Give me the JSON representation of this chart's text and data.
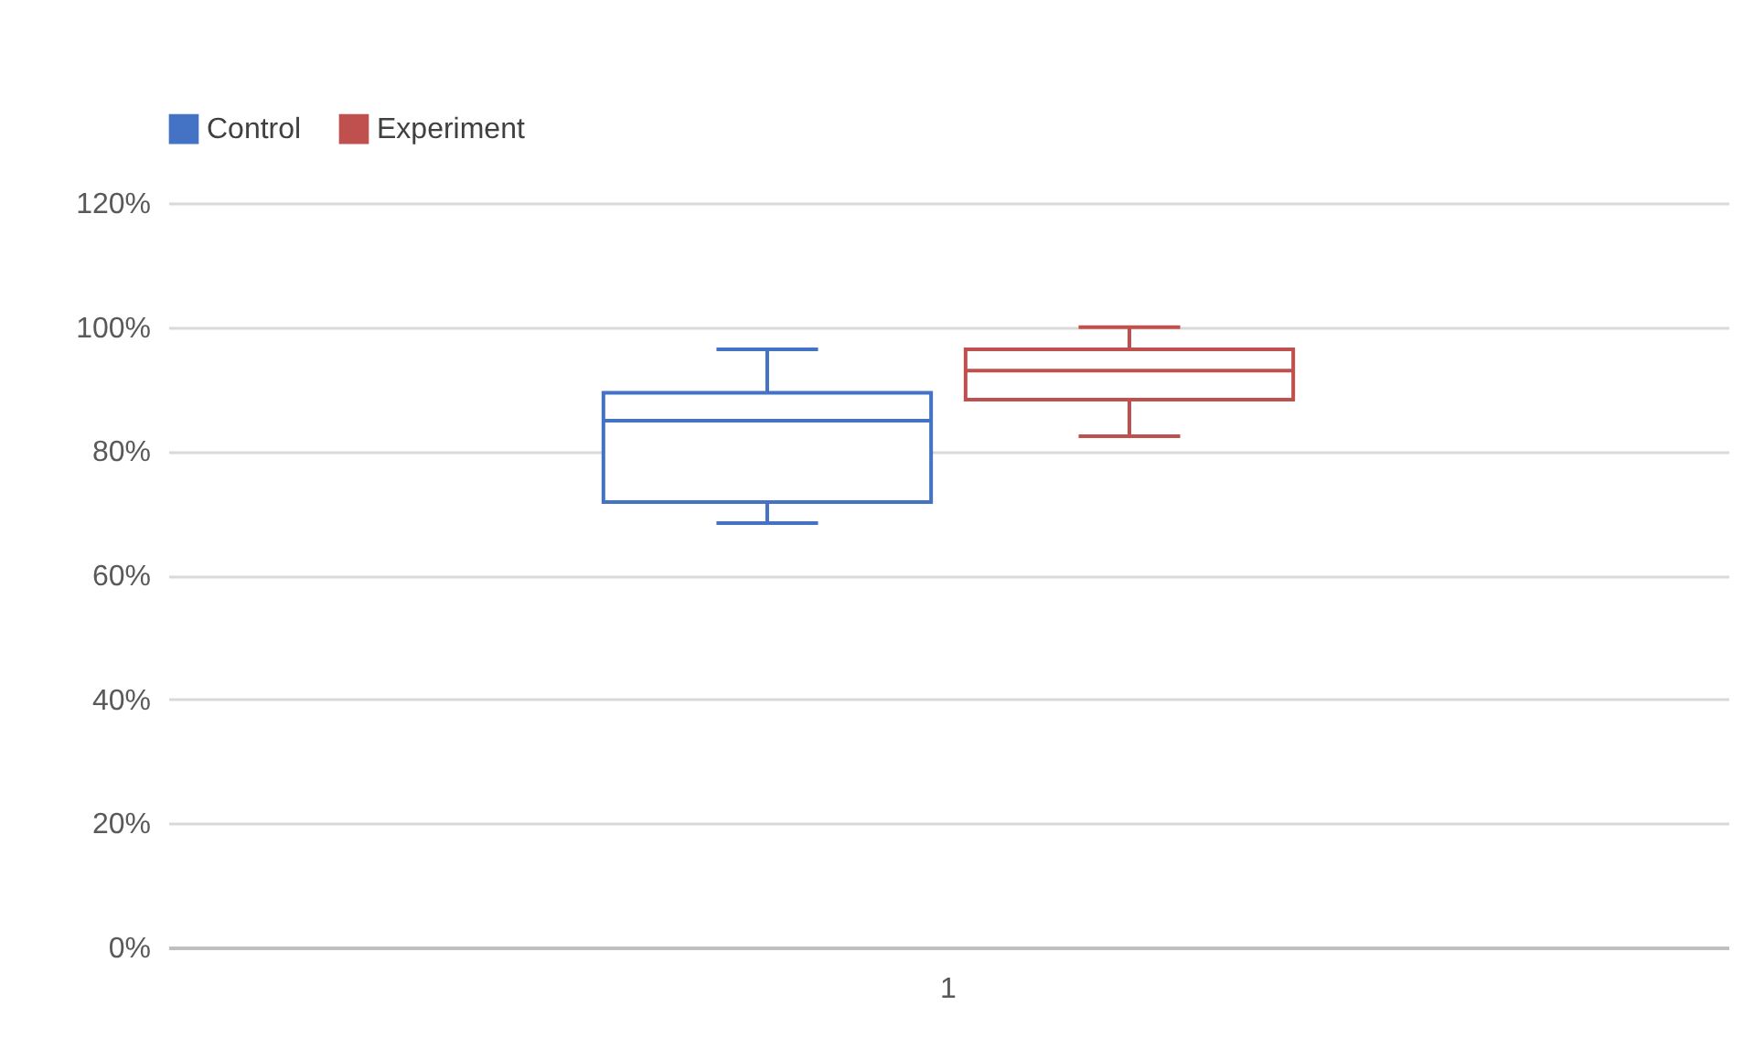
{
  "chart_data": {
    "type": "box",
    "categories": [
      "1"
    ],
    "series": [
      {
        "name": "Control",
        "color": "#4472c4",
        "boxes": [
          {
            "low": 0.684,
            "q1": 0.718,
            "median": 0.849,
            "q3": 0.894,
            "high": 0.964
          }
        ]
      },
      {
        "name": "Experiment",
        "color": "#c0504d",
        "boxes": [
          {
            "low": 0.824,
            "q1": 0.883,
            "median": 0.93,
            "q3": 0.964,
            "high": 1.0
          }
        ]
      }
    ],
    "ylim": [
      0,
      1.2
    ],
    "yticks": [
      {
        "value": 0,
        "label": "0%"
      },
      {
        "value": 0.2,
        "label": "20%"
      },
      {
        "value": 0.4,
        "label": "40%"
      },
      {
        "value": 0.6,
        "label": "60%"
      },
      {
        "value": 0.8,
        "label": "80%"
      },
      {
        "value": 1.0,
        "label": "100%"
      },
      {
        "value": 1.2,
        "label": "120%"
      }
    ],
    "grid": "y",
    "legend": "top"
  }
}
